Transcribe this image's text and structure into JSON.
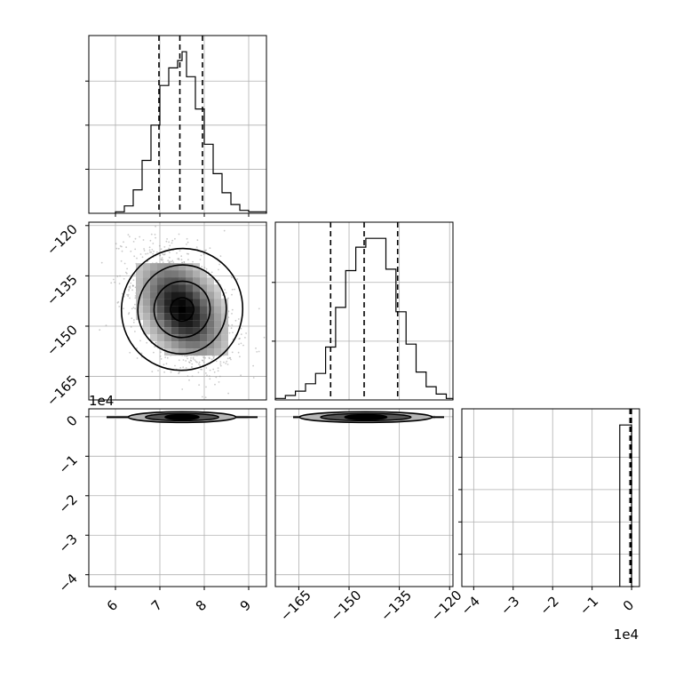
{
  "chart_data": {
    "type": "corner",
    "colors": {
      "line": "#000000",
      "grid": "#b0b0b0",
      "background": "#ffffff"
    },
    "grid": true,
    "parameters": [
      {
        "range": [
          5.4,
          9.4
        ],
        "ticks": [
          6,
          7,
          8,
          9
        ],
        "tick_labels": [
          "6",
          "7",
          "8",
          "9"
        ],
        "offset_label": ""
      },
      {
        "range": [
          -172,
          -119
        ],
        "ticks": [
          -165,
          -150,
          -135,
          -120
        ],
        "tick_labels": [
          "−165",
          "−150",
          "−135",
          "−120"
        ],
        "offset_label": ""
      },
      {
        "range": [
          -4.3,
          0.2
        ],
        "ticks": [
          -4,
          -3,
          -2,
          -1,
          0
        ],
        "tick_labels": [
          "−4",
          "−3",
          "−2",
          "−1",
          "0"
        ],
        "offset_label": "1e4"
      }
    ],
    "histograms": [
      {
        "param": 0,
        "bin_edges": [
          6.0,
          6.2,
          6.4,
          6.6,
          6.8,
          7.0,
          7.2,
          7.4,
          7.5,
          7.6,
          7.8,
          8.0,
          8.2,
          8.4,
          8.6,
          8.8,
          9.0,
          9.4
        ],
        "counts": [
          0.01,
          0.05,
          0.16,
          0.36,
          0.6,
          0.87,
          0.99,
          1.04,
          1.1,
          0.93,
          0.71,
          0.47,
          0.27,
          0.14,
          0.06,
          0.02,
          0.01
        ],
        "yticks": [
          0.3,
          0.6,
          0.9
        ],
        "quantiles": [
          6.98,
          7.45,
          7.96
        ]
      },
      {
        "param": 1,
        "bin_edges": [
          -172,
          -169,
          -166,
          -163,
          -160,
          -157,
          -154,
          -151,
          -148,
          -145,
          -142,
          -139,
          -136,
          -133,
          -130,
          -127,
          -124,
          -121,
          -119
        ],
        "counts": [
          0.01,
          0.03,
          0.06,
          0.11,
          0.18,
          0.36,
          0.63,
          0.88,
          1.04,
          1.1,
          1.1,
          0.89,
          0.6,
          0.38,
          0.19,
          0.09,
          0.04,
          0.01
        ],
        "yticks": [
          0.4,
          0.8
        ],
        "quantiles": [
          -155.5,
          -145.5,
          -135.5
        ]
      },
      {
        "param": 2,
        "bin_edges": [
          -0.3,
          0.0,
          0.05
        ],
        "counts": [
          1.0,
          0.0
        ],
        "yticks": [
          0.2,
          0.4,
          0.6,
          0.8
        ],
        "quantiles": [
          -0.04,
          -0.02,
          -0.005
        ]
      }
    ],
    "pairs": [
      {
        "x_param": 0,
        "y_param": 1,
        "center": [
          7.5,
          -145
        ],
        "spread": [
          0.55,
          9
        ],
        "correlation": -0.4
      },
      {
        "x_param": 0,
        "y_param": 2,
        "center": [
          7.5,
          -0.01
        ],
        "spread": [
          0.55,
          0.04
        ],
        "correlation": 0.0
      },
      {
        "x_param": 1,
        "y_param": 2,
        "center": [
          -145,
          -0.01
        ],
        "spread": [
          9,
          0.04
        ],
        "correlation": 0.0
      }
    ]
  }
}
